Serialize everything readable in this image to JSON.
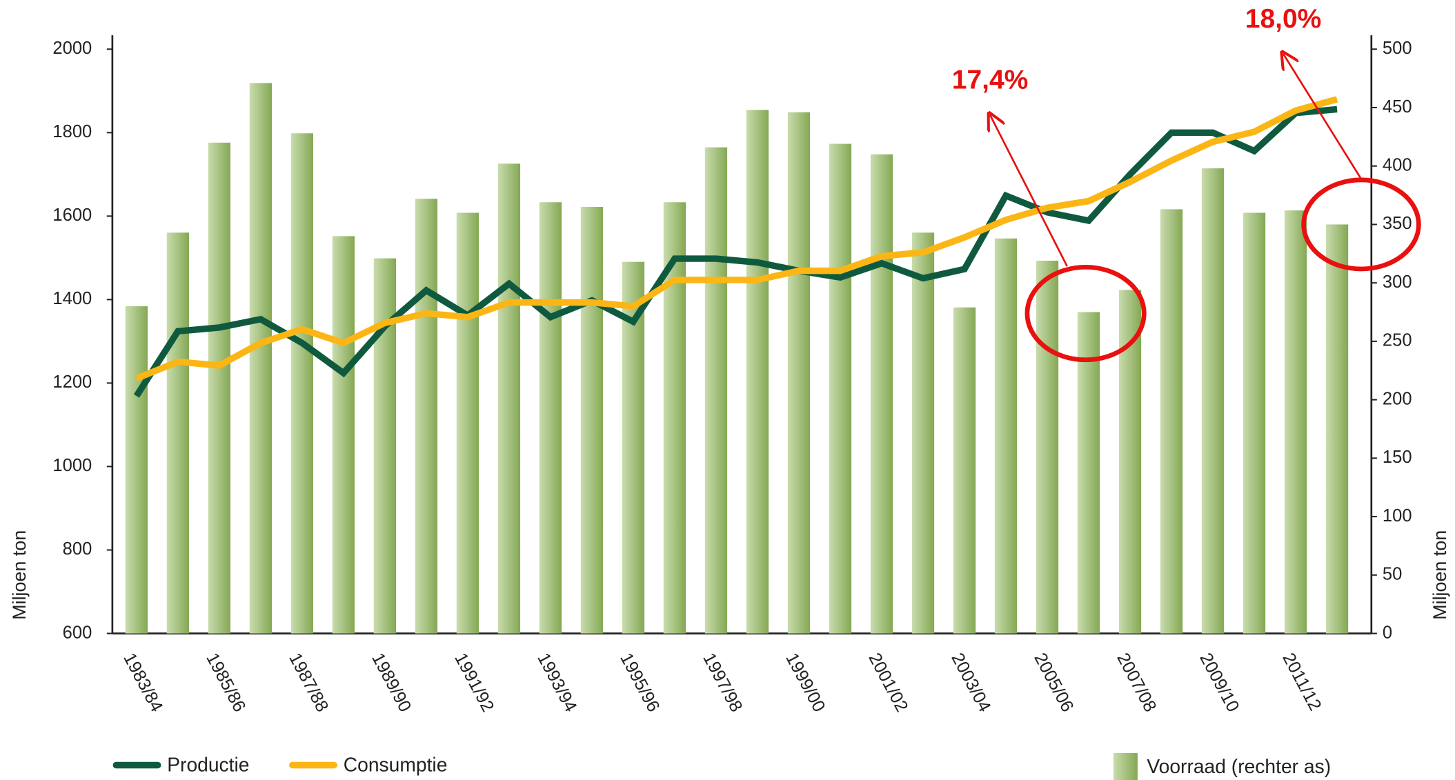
{
  "chart_data": {
    "type": "bar",
    "categories": [
      "1983/84",
      null,
      "1985/86",
      null,
      "1987/88",
      null,
      "1989/90",
      null,
      "1991/92",
      null,
      "1993/94",
      null,
      "1995/96",
      null,
      "1997/98",
      null,
      "1999/00",
      null,
      "2001/02",
      null,
      "2003/04",
      null,
      "2005/06",
      null,
      "2007/08",
      null,
      "2009/10",
      null,
      "2011/12",
      null
    ],
    "series": [
      {
        "name": "Productie",
        "type": "line",
        "color": "#0f5a3f",
        "values": [
          1169,
          1324,
          1333,
          1353,
          1296,
          1224,
          1336,
          1422,
          1362,
          1438,
          1358,
          1398,
          1347,
          1498,
          1498,
          1489,
          1469,
          1453,
          1487,
          1451,
          1473,
          1649,
          1609,
          1589,
          1700,
          1800,
          1800,
          1756,
          1847,
          1856
        ]
      },
      {
        "name": "Consumptie",
        "type": "line",
        "color": "#fbb615",
        "values": [
          1211,
          1251,
          1242,
          1296,
          1329,
          1296,
          1344,
          1367,
          1358,
          1393,
          1393,
          1393,
          1384,
          1447,
          1447,
          1447,
          1469,
          1469,
          1504,
          1513,
          1549,
          1591,
          1620,
          1636,
          1682,
          1733,
          1778,
          1802,
          1853,
          1880
        ]
      },
      {
        "name": "Voorraad (rechter as)",
        "type": "bar",
        "axis": "y2",
        "color": "#84a853",
        "values": [
          280,
          343,
          420,
          471,
          428,
          340,
          321,
          372,
          360,
          402,
          369,
          365,
          318,
          369,
          416,
          448,
          446,
          419,
          410,
          343,
          279,
          338,
          319,
          275,
          294,
          363,
          398,
          360,
          362,
          350
        ]
      }
    ],
    "ylabel": "Miljoen ton",
    "y2label": "Miljoen ton",
    "ylim": [
      600,
      2000
    ],
    "yticks": [
      600,
      800,
      1000,
      1200,
      1400,
      1600,
      1800,
      2000
    ],
    "y2lim": [
      0,
      500
    ],
    "y2ticks": [
      0,
      50,
      100,
      150,
      200,
      250,
      300,
      350,
      400,
      450,
      500
    ],
    "grid": false,
    "annotations": [
      "17,4%",
      "18,0%"
    ]
  }
}
